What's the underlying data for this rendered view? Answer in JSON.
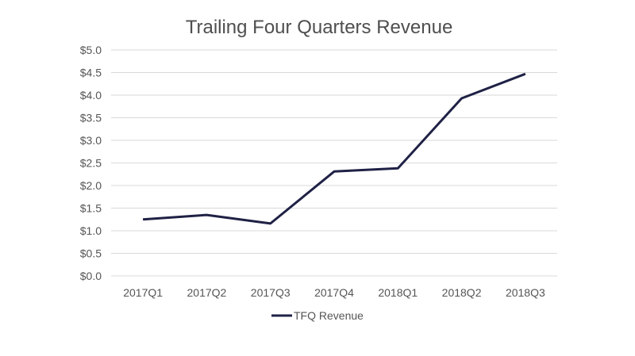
{
  "chart_data": {
    "type": "line",
    "title": "Trailing Four Quarters Revenue",
    "xlabel": "",
    "ylabel": "",
    "categories": [
      "2017Q1",
      "2017Q2",
      "2017Q3",
      "2017Q4",
      "2018Q1",
      "2018Q2",
      "2018Q3"
    ],
    "y_ticks": [
      "$0.0",
      "$0.5",
      "$1.0",
      "$1.5",
      "$2.0",
      "$2.5",
      "$3.0",
      "$3.5",
      "$4.0",
      "$4.5",
      "$5.0"
    ],
    "ylim": [
      0,
      5
    ],
    "grid": true,
    "legend_position": "bottom",
    "series": [
      {
        "name": "TFQ Revenue",
        "color": "#1f2145",
        "values": [
          1.25,
          1.35,
          1.16,
          2.31,
          2.38,
          3.93,
          4.47
        ]
      }
    ]
  }
}
